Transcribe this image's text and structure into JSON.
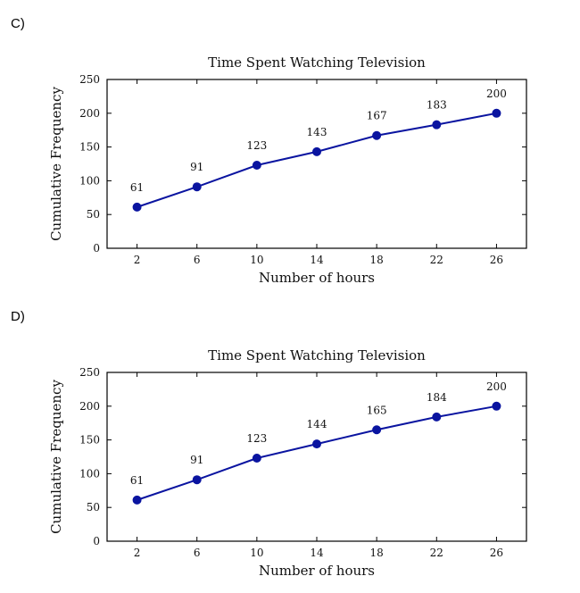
{
  "options": [
    {
      "label": "C)"
    },
    {
      "label": "D)"
    }
  ],
  "chart_data": [
    {
      "type": "line",
      "title": "Time Spent Watching Television",
      "xlabel": "Number of hours",
      "ylabel": "Cumulative Frequency",
      "x": [
        2,
        6,
        10,
        14,
        18,
        22,
        26
      ],
      "values": [
        61,
        91,
        123,
        143,
        167,
        183,
        200
      ],
      "xlim": [
        0,
        28
      ],
      "ylim": [
        0,
        250
      ],
      "xticks": [
        2,
        6,
        10,
        14,
        18,
        22,
        26
      ],
      "yticks": [
        0,
        50,
        100,
        150,
        200,
        250
      ],
      "data_labels": true,
      "grid": false,
      "color": "#0a14a0"
    },
    {
      "type": "line",
      "title": "Time Spent Watching Television",
      "xlabel": "Number of hours",
      "ylabel": "Cumulative Frequency",
      "x": [
        2,
        6,
        10,
        14,
        18,
        22,
        26
      ],
      "values": [
        61,
        91,
        123,
        144,
        165,
        184,
        200
      ],
      "xlim": [
        0,
        28
      ],
      "ylim": [
        0,
        250
      ],
      "xticks": [
        2,
        6,
        10,
        14,
        18,
        22,
        26
      ],
      "yticks": [
        0,
        50,
        100,
        150,
        200,
        250
      ],
      "data_labels": true,
      "grid": false,
      "color": "#0a14a0"
    }
  ]
}
